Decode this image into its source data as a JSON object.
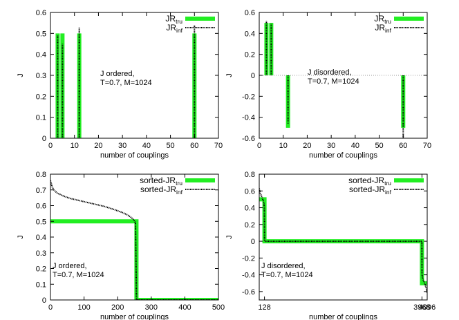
{
  "colors": {
    "truth": "#22ee22",
    "inferred": "#000000",
    "zero_line": "#999999"
  },
  "chart_data": [
    {
      "id": "top-left",
      "type": "bar",
      "xlabel": "number of couplings",
      "ylabel": "J",
      "xlim": [
        0,
        70
      ],
      "ylim": [
        0,
        0.6
      ],
      "xticks": [
        0,
        10,
        20,
        30,
        40,
        50,
        60,
        70
      ],
      "yticks": [
        0,
        0.1,
        0.2,
        0.3,
        0.4,
        0.5,
        0.6
      ],
      "legend": [
        {
          "base": "JR",
          "sub": "tru",
          "style": "truth"
        },
        {
          "base": "JR",
          "sub": "inf",
          "style": "inferred"
        }
      ],
      "legend_position": "top-right",
      "annotation": [
        "J ordered,",
        "T=0.7, M=1024"
      ],
      "annotation_position": "middle",
      "series": [
        {
          "name": "JR_tru",
          "style": "truth",
          "x": [
            3,
            5,
            12,
            60
          ],
          "y": [
            0.5,
            0.5,
            0.5,
            0.5
          ]
        },
        {
          "name": "JR_inf",
          "style": "inferred",
          "x": [
            3,
            5,
            12,
            60
          ],
          "y": [
            0.49,
            0.45,
            0.53,
            0.54
          ]
        }
      ]
    },
    {
      "id": "top-right",
      "type": "bar",
      "xlabel": "number of couplings",
      "ylabel": "J",
      "xlim": [
        0,
        70
      ],
      "ylim": [
        -0.6,
        0.6
      ],
      "xticks": [
        0,
        10,
        20,
        30,
        40,
        50,
        60,
        70
      ],
      "yticks": [
        -0.6,
        -0.4,
        -0.2,
        0,
        0.2,
        0.4,
        0.6
      ],
      "legend": [
        {
          "base": "JR",
          "sub": "tru",
          "style": "truth"
        },
        {
          "base": "JR",
          "sub": "inf",
          "style": "inferred"
        }
      ],
      "legend_position": "top-right",
      "annotation": [
        "J disordered,",
        "T=0.7, M=1024"
      ],
      "annotation_position": "middle",
      "series": [
        {
          "name": "JR_tru",
          "style": "truth",
          "x": [
            3,
            5,
            12,
            60
          ],
          "y": [
            0.5,
            0.5,
            -0.5,
            -0.5
          ]
        },
        {
          "name": "JR_inf",
          "style": "inferred",
          "x": [
            3,
            5,
            12,
            60
          ],
          "y": [
            0.52,
            0.49,
            -0.46,
            -0.6
          ]
        }
      ]
    },
    {
      "id": "bottom-left",
      "type": "line",
      "xlabel": "number of couplings",
      "ylabel": "J",
      "xlim": [
        0,
        500
      ],
      "ylim": [
        0,
        0.8
      ],
      "xticks": [
        0,
        100,
        200,
        300,
        400,
        500
      ],
      "yticks": [
        0,
        0.1,
        0.2,
        0.3,
        0.4,
        0.5,
        0.6,
        0.7,
        0.8
      ],
      "legend": [
        {
          "base": "sorted-JR",
          "sub": "tru",
          "style": "truth"
        },
        {
          "base": "sorted-JR",
          "sub": "inf",
          "style": "inferred"
        }
      ],
      "legend_position": "top-right",
      "annotation": [
        "J ordered,",
        "T=0.7, M=1024"
      ],
      "annotation_position": "bottom-left",
      "series": [
        {
          "name": "sorted-JR_tru",
          "style": "truth",
          "x": [
            0,
            256,
            256,
            500
          ],
          "y": [
            0.5,
            0.5,
            0,
            0
          ]
        },
        {
          "name": "sorted-JR_inf",
          "style": "inferred",
          "x": [
            0,
            5,
            10,
            20,
            40,
            60,
            80,
            100,
            130,
            160,
            190,
            215,
            230,
            240,
            248,
            253,
            256,
            257,
            500
          ],
          "y": [
            0.76,
            0.72,
            0.7,
            0.68,
            0.66,
            0.645,
            0.635,
            0.625,
            0.61,
            0.595,
            0.575,
            0.555,
            0.54,
            0.525,
            0.51,
            0.49,
            0.02,
            0.0,
            0.0
          ]
        }
      ]
    },
    {
      "id": "bottom-right",
      "type": "line",
      "xlabel": "number of couplings",
      "ylabel": "J",
      "xlim": [
        0,
        4096
      ],
      "ylim": [
        -0.7,
        0.8
      ],
      "xticks": [
        128,
        3968,
        4096
      ],
      "yticks": [
        -0.6,
        -0.4,
        -0.2,
        0,
        0.2,
        0.4,
        0.6,
        0.8
      ],
      "legend": [
        {
          "base": "sorted-JR",
          "sub": "tru",
          "style": "truth"
        },
        {
          "base": "sorted-JR",
          "sub": "inf",
          "style": "inferred"
        }
      ],
      "legend_position": "top-right",
      "annotation": [
        "J disordered,",
        "T=0.7, M=1024"
      ],
      "annotation_position": "bottom-left",
      "series": [
        {
          "name": "sorted-JR_tru",
          "style": "truth",
          "x": [
            0,
            128,
            128,
            3968,
            3968,
            4096
          ],
          "y": [
            0.5,
            0.5,
            0,
            0,
            -0.5,
            -0.5
          ]
        },
        {
          "name": "sorted-JR_inf",
          "style": "inferred",
          "x": [
            0,
            10,
            25,
            45,
            70,
            95,
            115,
            125,
            128,
            130,
            3966,
            3968,
            3970,
            3990,
            4015,
            4040,
            4065,
            4085,
            4096
          ],
          "y": [
            0.63,
            0.6,
            0.57,
            0.55,
            0.52,
            0.49,
            0.45,
            0.4,
            0.2,
            0.0,
            0.0,
            -0.2,
            -0.4,
            -0.45,
            -0.48,
            -0.51,
            -0.55,
            -0.58,
            -0.62
          ]
        }
      ]
    }
  ]
}
